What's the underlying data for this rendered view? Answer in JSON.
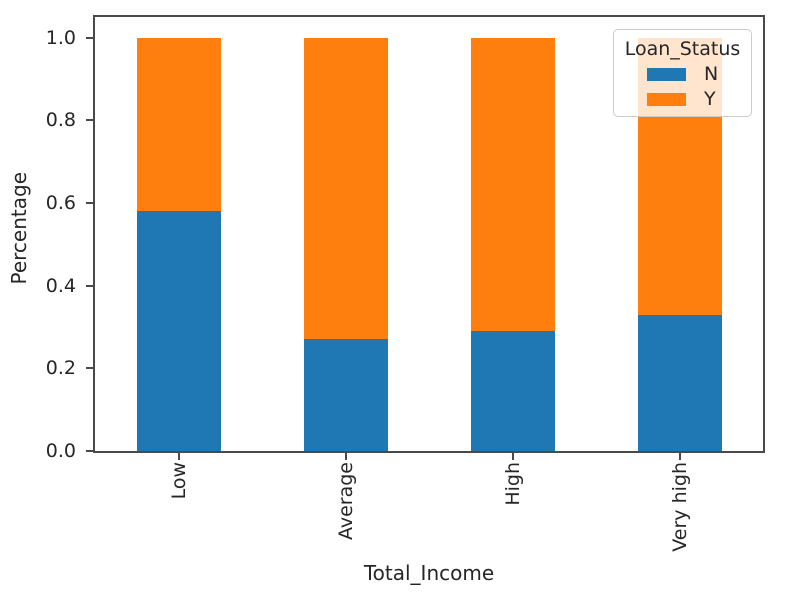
{
  "chart_data": {
    "type": "bar",
    "stacked": true,
    "title": "",
    "xlabel": "Total_Income",
    "ylabel": "Percentage",
    "categories": [
      "Low",
      "Average",
      "High",
      "Very high"
    ],
    "series": [
      {
        "name": "N",
        "color": "#1f77b4",
        "values": [
          0.58,
          0.27,
          0.29,
          0.33
        ]
      },
      {
        "name": "Y",
        "color": "#ff7f0e",
        "values": [
          0.42,
          0.73,
          0.71,
          0.67
        ]
      }
    ],
    "ylim": [
      0,
      1.05
    ],
    "yticks": [
      0.0,
      0.2,
      0.4,
      0.6,
      0.8,
      1.0
    ],
    "ytick_labels": [
      "0.0",
      "0.2",
      "0.4",
      "0.6",
      "0.8",
      "1.0"
    ],
    "grid": false,
    "legend": {
      "title": "Loan_Status",
      "position": "upper right",
      "entries": [
        "N",
        "Y"
      ]
    }
  }
}
